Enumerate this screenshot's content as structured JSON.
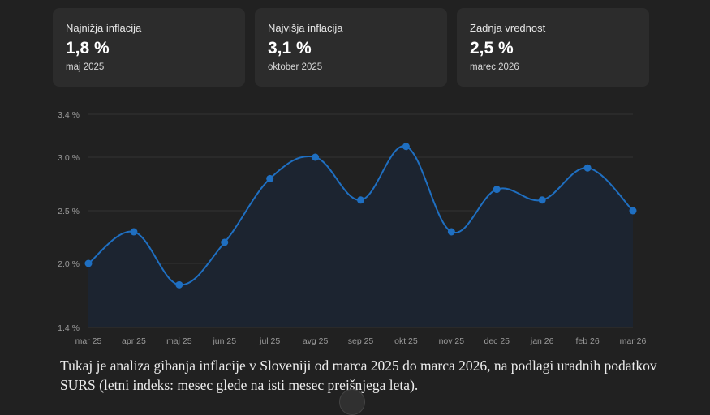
{
  "toolbar": {
    "more_label": "•••"
  },
  "stats": [
    {
      "label": "Najnižja inflacija",
      "value": "1,8 %",
      "date": "maj 2025"
    },
    {
      "label": "Najvišja inflacija",
      "value": "3,1 %",
      "date": "oktober 2025"
    },
    {
      "label": "Zadnja vrednost",
      "value": "2,5 %",
      "date": "marec 2026"
    }
  ],
  "chart_data": {
    "type": "line",
    "title": "",
    "xlabel": "",
    "ylabel": "",
    "categories": [
      "mar 25",
      "apr 25",
      "maj 25",
      "jun 25",
      "jul 25",
      "avg 25",
      "sep 25",
      "okt 25",
      "nov 25",
      "dec 25",
      "jan 26",
      "feb 26",
      "mar 26"
    ],
    "series": [
      {
        "values": [
          2.0,
          2.3,
          1.8,
          2.2,
          2.8,
          3.0,
          2.6,
          3.1,
          2.3,
          2.7,
          2.6,
          2.9,
          2.5
        ]
      }
    ],
    "ylim": [
      1.4,
      3.4
    ],
    "yticks": [
      {
        "value": 3.4,
        "label": "3.4 %"
      },
      {
        "value": 3.0,
        "label": "3.0 %"
      },
      {
        "value": 2.5,
        "label": "2.5 %"
      },
      {
        "value": 2.0,
        "label": "2.0 %"
      },
      {
        "value": 1.4,
        "label": "1.4 %"
      }
    ],
    "grid": true,
    "line_color": "#1f6fc1",
    "area_color": "#1c2430",
    "grid_color": "#333333"
  },
  "caption": "Tukaj je analiza gibanja inflacije v Sloveniji od marca 2025 do marca 2026, na podlagi uradnih podatkov SURS (letni indeks: mesec glede na isti mesec prejšnjega leta)."
}
